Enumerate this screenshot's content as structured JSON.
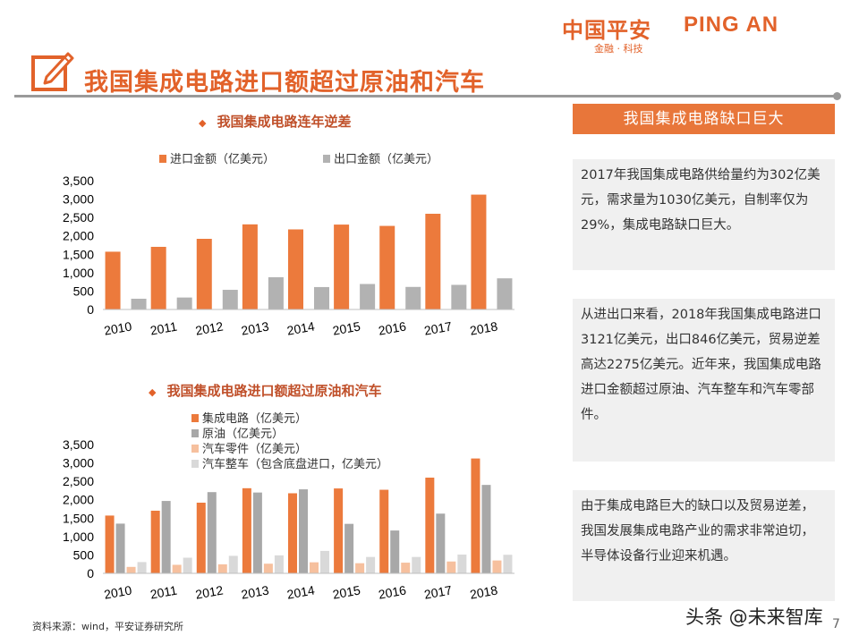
{
  "logo": {
    "cn": "中国平安",
    "en": "PING AN",
    "sub": "金融 · 科技"
  },
  "page_title": "我国集成电路进口额超过原油和汽车",
  "charts": {
    "chart1_title": "我国集成电路连年逆差",
    "chart2_title": "我国集成电路进口额超过原油和汽车"
  },
  "right_header": "我国集成电路缺口巨大",
  "paragraphs": [
    "2017年我国集成电路供给量约为302亿美元，需求量为1030亿美元，自制率仅为29%，集成电路缺口巨大。",
    "从进出口来看，2018年我国集成电路进口3121亿美元，出口846亿美元，贸易逆差高达2275亿美元。近年来，我国集成电路进口金额超过原油、汽车整车和汽车零部件。",
    "由于集成电路巨大的缺口以及贸易逆差，我国发展集成电路产业的需求非常迫切，半导体设备行业迎来机遇。"
  ],
  "source": "资料来源：wind，平安证券研究所",
  "watermark": "头条 @未来智库",
  "page_number": "7",
  "colors": {
    "accent": "#e2622a",
    "import": "#ec7a3c",
    "export": "#b2b2b2",
    "oil": "#a8a8a8",
    "parts": "#f6c09e",
    "cars": "#d9d9d9"
  },
  "chart_data": [
    {
      "type": "bar",
      "title": "我国集成电路连年逆差",
      "categories": [
        "2010",
        "2011",
        "2012",
        "2013",
        "2014",
        "2015",
        "2016",
        "2017",
        "2018"
      ],
      "series": [
        {
          "name": "进口金额（亿美元）",
          "values": [
            1570,
            1702,
            1920,
            2313,
            2176,
            2307,
            2271,
            2601,
            3121
          ]
        },
        {
          "name": "出口金额（亿美元）",
          "values": [
            292,
            325,
            534,
            877,
            609,
            693,
            613,
            669,
            846
          ]
        }
      ],
      "ylim": [
        0,
        3500
      ],
      "yticks": [
        "0",
        "500",
        "1,000",
        "1,500",
        "2,000",
        "2,500",
        "3,000",
        "3,500"
      ],
      "legend": "top",
      "grid": false
    },
    {
      "type": "bar",
      "title": "我国集成电路进口额超过原油和汽车",
      "categories": [
        "2010",
        "2011",
        "2012",
        "2013",
        "2014",
        "2015",
        "2016",
        "2017",
        "2018"
      ],
      "series": [
        {
          "name": "集成电路（亿美元）",
          "values": [
            1570,
            1702,
            1920,
            2313,
            2176,
            2307,
            2271,
            2601,
            3121
          ]
        },
        {
          "name": "原油（亿美元）",
          "values": [
            1351,
            1967,
            2207,
            2196,
            2283,
            1345,
            1164,
            1623,
            2403
          ]
        },
        {
          "name": "汽车零件（亿美元）",
          "values": [
            175,
            232,
            245,
            262,
            300,
            275,
            290,
            322,
            350
          ]
        },
        {
          "name": "汽车整车（包含底盘进口，亿美元）",
          "values": [
            306,
            425,
            475,
            488,
            610,
            445,
            445,
            510,
            505
          ]
        }
      ],
      "ylim": [
        0,
        3500
      ],
      "yticks": [
        "0",
        "500",
        "1,000",
        "1,500",
        "2,000",
        "2,500",
        "3,000",
        "3,500"
      ],
      "legend": "top-left",
      "grid": false
    }
  ]
}
